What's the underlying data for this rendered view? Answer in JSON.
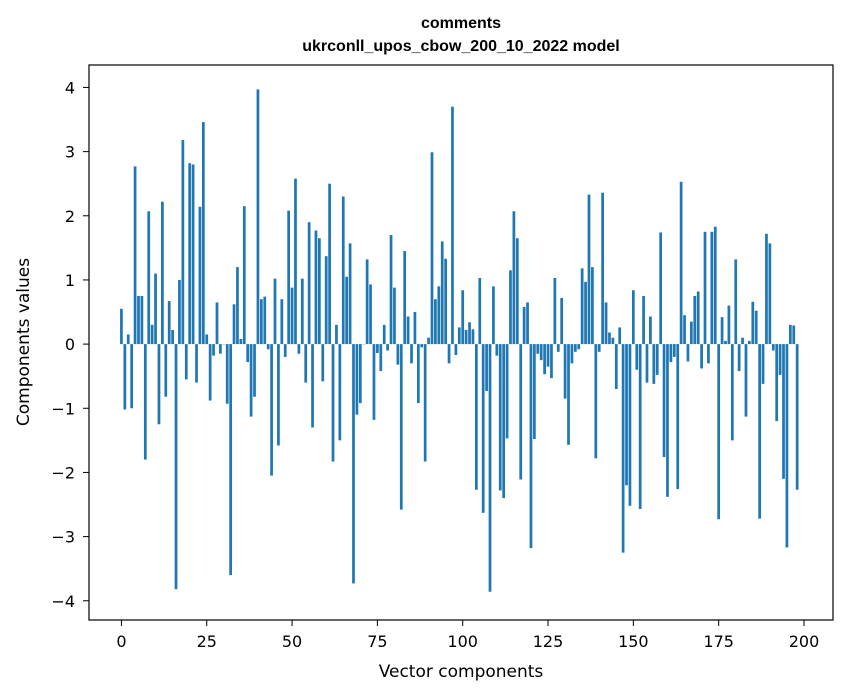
{
  "chart_data": {
    "type": "bar",
    "title": "comments",
    "subtitle": "ukrconll_upos_cbow_200_10_2022 model",
    "xlabel": "Vector components",
    "ylabel": "Components values",
    "xlim": [
      -9.5,
      208.5
    ],
    "ylim": [
      -4.3,
      4.35
    ],
    "xticks": [
      0,
      25,
      50,
      75,
      100,
      125,
      150,
      175,
      200
    ],
    "yticks": [
      4,
      3,
      2,
      1,
      0,
      -1,
      -2,
      -3,
      -4
    ],
    "xtick_labels": [
      "0",
      "25",
      "50",
      "75",
      "100",
      "125",
      "150",
      "175",
      "200"
    ],
    "ytick_labels": [
      "4",
      "3",
      "2",
      "1",
      "0",
      "−1",
      "−2",
      "−3",
      "−4"
    ],
    "bar_color": "#1f77b4",
    "values": [
      0.55,
      -1.02,
      0.15,
      -1.0,
      2.77,
      0.75,
      0.75,
      -1.8,
      2.07,
      0.3,
      1.1,
      -1.25,
      2.22,
      -0.82,
      0.67,
      0.22,
      -3.82,
      1.0,
      3.18,
      -0.55,
      2.82,
      2.8,
      -0.6,
      2.14,
      3.46,
      0.15,
      -0.88,
      -0.18,
      0.65,
      -0.15,
      0.0,
      -0.93,
      -3.6,
      0.62,
      1.2,
      0.08,
      2.15,
      -0.28,
      -1.13,
      -0.82,
      3.97,
      0.7,
      0.74,
      -0.08,
      -2.05,
      1.02,
      -1.58,
      0.7,
      -0.2,
      2.08,
      0.88,
      2.58,
      -0.15,
      1.02,
      -0.6,
      1.9,
      -1.3,
      1.77,
      1.65,
      -0.58,
      1.37,
      2.5,
      -1.83,
      0.3,
      -1.5,
      2.3,
      1.05,
      1.57,
      -3.73,
      -1.1,
      -0.92,
      0.0,
      1.32,
      0.93,
      -1.18,
      -0.14,
      -0.42,
      0.3,
      -0.1,
      1.7,
      0.88,
      -0.32,
      -2.58,
      1.45,
      0.43,
      -0.3,
      0.5,
      -0.92,
      -0.05,
      -1.83,
      0.1,
      2.99,
      0.7,
      0.9,
      1.6,
      1.33,
      -0.3,
      3.7,
      -0.17,
      0.26,
      0.84,
      0.22,
      0.34,
      0.23,
      -2.27,
      1.03,
      -2.63,
      -0.73,
      -3.86,
      0.9,
      -0.18,
      -2.28,
      -2.4,
      -1.47,
      1.15,
      2.07,
      1.65,
      -2.11,
      0.58,
      0.65,
      -3.18,
      -1.48,
      -0.15,
      -0.25,
      -0.47,
      -0.35,
      -0.53,
      1.03,
      -0.12,
      0.72,
      -0.85,
      -1.57,
      -0.3,
      -0.12,
      -0.08,
      1.18,
      0.97,
      2.33,
      1.2,
      -1.78,
      -0.12,
      2.36,
      0.65,
      0.18,
      0.1,
      -0.7,
      0.26,
      -3.25,
      -2.2,
      -2.52,
      0.84,
      -0.4,
      -2.57,
      0.75,
      -0.6,
      0.43,
      -0.62,
      -0.48,
      1.74,
      -1.76,
      -2.38,
      -0.28,
      -0.2,
      -2.26,
      2.53,
      0.45,
      -0.27,
      0.35,
      0.75,
      0.82,
      -0.38,
      1.75,
      -0.3,
      1.75,
      1.83,
      -2.73,
      0.42,
      0.05,
      0.6,
      -1.5,
      1.32,
      -0.42,
      0.1,
      -1.13,
      0.05,
      0.66,
      0.52,
      -2.72,
      -0.62,
      1.72,
      1.57,
      -0.1,
      -1.2,
      -0.48,
      -2.1,
      -3.17,
      0.3,
      0.29,
      -2.27
    ]
  }
}
